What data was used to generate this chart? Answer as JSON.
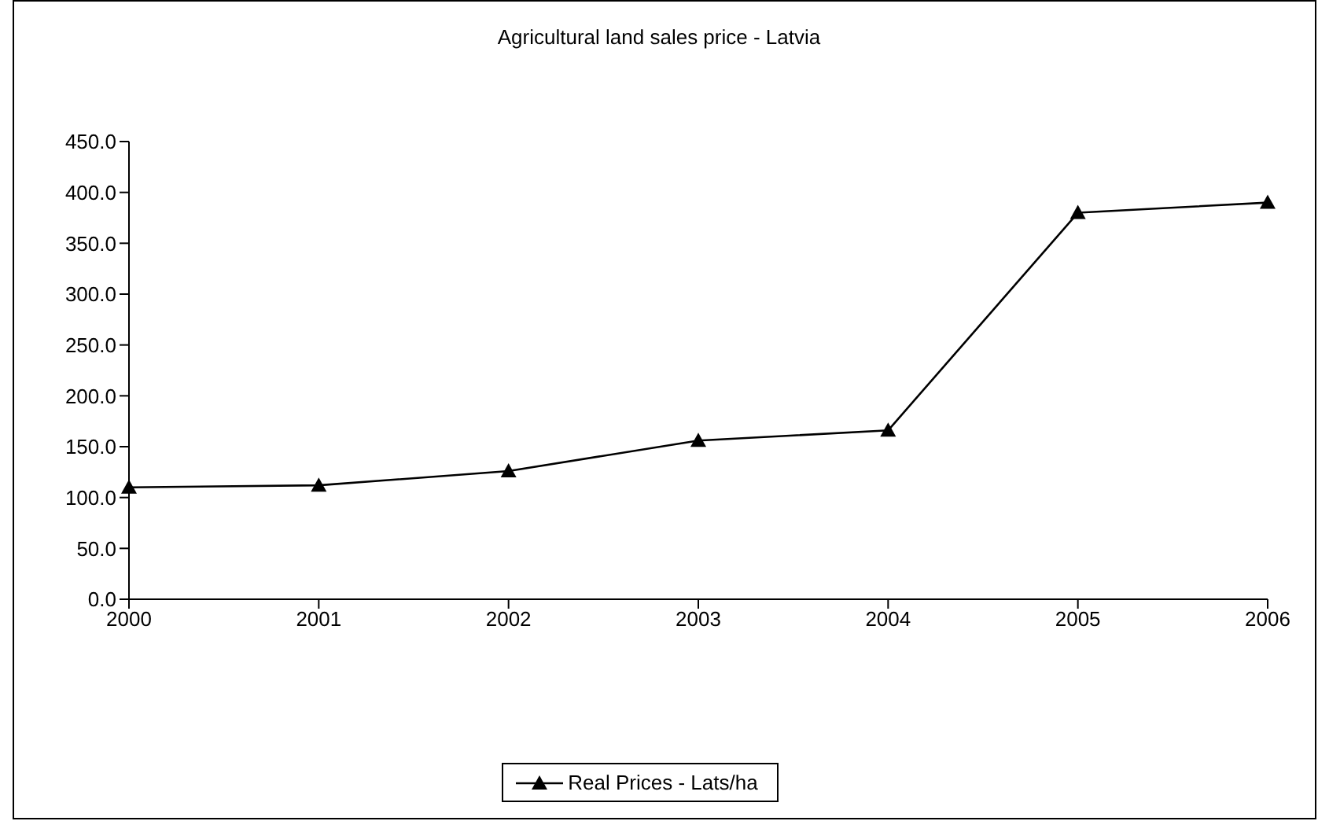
{
  "chart_data": {
    "type": "line",
    "title": "Agricultural land sales price - Latvia",
    "categories": [
      "2000",
      "2001",
      "2002",
      "2003",
      "2004",
      "2005",
      "2006"
    ],
    "series": [
      {
        "name": "Real Prices - Lats/ha",
        "color": "#000000",
        "values": [
          110,
          112,
          126,
          156,
          166,
          380,
          390
        ]
      }
    ],
    "ylim": [
      0,
      450
    ],
    "yticks": [
      {
        "value": 0,
        "label": "0.0"
      },
      {
        "value": 50,
        "label": "50.0"
      },
      {
        "value": 100,
        "label": "100.0"
      },
      {
        "value": 150,
        "label": "150.0"
      },
      {
        "value": 200,
        "label": "200.0"
      },
      {
        "value": 250,
        "label": "250.0"
      },
      {
        "value": 300,
        "label": "300.0"
      },
      {
        "value": 350,
        "label": "350.0"
      },
      {
        "value": 400,
        "label": "400.0"
      },
      {
        "value": 450,
        "label": "450.0"
      }
    ],
    "grid": false,
    "legend": "bottom",
    "marker": "triangle",
    "line_style": "solid"
  }
}
